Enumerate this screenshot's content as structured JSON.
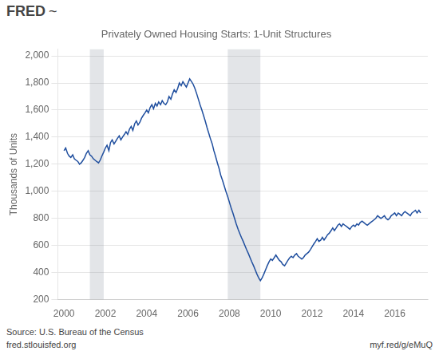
{
  "chart_data": {
    "type": "line",
    "title": "Privately Owned Housing Starts: 1-Unit Structures",
    "ylabel": "Thousands of Units",
    "annotations": [
      "FRED",
      "~",
      "Source: U.S. Bureau of the Census",
      "fred.stlouisfed.org",
      "myf.red/g/eMuQ"
    ],
    "color": "#1f4e9e",
    "grid": "y",
    "xlim": [
      1999.7,
      2017.6
    ],
    "xticks": [
      2000,
      2002,
      2004,
      2006,
      2008,
      2010,
      2012,
      2014,
      2016
    ],
    "ylim": [
      200,
      2050
    ],
    "yticks": [
      200,
      400,
      600,
      800,
      {
        "value": 1000,
        "label": "1,000"
      },
      {
        "value": 1200,
        "label": "1,200"
      },
      {
        "value": 1400,
        "label": "1,400"
      },
      {
        "value": 1600,
        "label": "1,600"
      },
      {
        "value": 1800,
        "label": "1,800"
      },
      {
        "value": 2000,
        "label": "2,000"
      }
    ],
    "shaded_ranges": [
      [
        2001.25,
        2001.92
      ],
      [
        2007.92,
        2009.5
      ]
    ],
    "x": [
      2000.0,
      2000.08,
      2000.17,
      2000.25,
      2000.33,
      2000.42,
      2000.5,
      2000.58,
      2000.67,
      2000.75,
      2000.83,
      2000.92,
      2001.0,
      2001.08,
      2001.17,
      2001.25,
      2001.33,
      2001.42,
      2001.5,
      2001.58,
      2001.67,
      2001.75,
      2001.83,
      2001.92,
      2002.0,
      2002.08,
      2002.17,
      2002.25,
      2002.33,
      2002.42,
      2002.5,
      2002.58,
      2002.67,
      2002.75,
      2002.83,
      2002.92,
      2003.0,
      2003.08,
      2003.17,
      2003.25,
      2003.33,
      2003.42,
      2003.5,
      2003.58,
      2003.67,
      2003.75,
      2003.83,
      2003.92,
      2004.0,
      2004.08,
      2004.17,
      2004.25,
      2004.33,
      2004.42,
      2004.5,
      2004.58,
      2004.67,
      2004.75,
      2004.83,
      2004.92,
      2005.0,
      2005.08,
      2005.17,
      2005.25,
      2005.33,
      2005.42,
      2005.5,
      2005.58,
      2005.67,
      2005.75,
      2005.83,
      2005.92,
      2006.0,
      2006.08,
      2006.17,
      2006.25,
      2006.33,
      2006.42,
      2006.5,
      2006.58,
      2006.67,
      2006.75,
      2006.83,
      2006.92,
      2007.0,
      2007.08,
      2007.17,
      2007.25,
      2007.33,
      2007.42,
      2007.5,
      2007.58,
      2007.67,
      2007.75,
      2007.83,
      2007.92,
      2008.0,
      2008.08,
      2008.17,
      2008.25,
      2008.33,
      2008.42,
      2008.5,
      2008.58,
      2008.67,
      2008.75,
      2008.83,
      2008.92,
      2009.0,
      2009.08,
      2009.17,
      2009.25,
      2009.33,
      2009.42,
      2009.5,
      2009.58,
      2009.67,
      2009.75,
      2009.83,
      2009.92,
      2010.0,
      2010.08,
      2010.17,
      2010.25,
      2010.33,
      2010.42,
      2010.5,
      2010.58,
      2010.67,
      2010.75,
      2010.83,
      2010.92,
      2011.0,
      2011.08,
      2011.17,
      2011.25,
      2011.33,
      2011.42,
      2011.5,
      2011.58,
      2011.67,
      2011.75,
      2011.83,
      2011.92,
      2012.0,
      2012.08,
      2012.17,
      2012.25,
      2012.33,
      2012.42,
      2012.5,
      2012.58,
      2012.67,
      2012.75,
      2012.83,
      2012.92,
      2013.0,
      2013.08,
      2013.17,
      2013.25,
      2013.33,
      2013.42,
      2013.5,
      2013.58,
      2013.67,
      2013.75,
      2013.83,
      2013.92,
      2014.0,
      2014.08,
      2014.17,
      2014.25,
      2014.33,
      2014.42,
      2014.5,
      2014.58,
      2014.67,
      2014.75,
      2014.83,
      2014.92,
      2015.0,
      2015.08,
      2015.17,
      2015.25,
      2015.33,
      2015.42,
      2015.5,
      2015.58,
      2015.67,
      2015.75,
      2015.83,
      2015.92,
      2016.0,
      2016.08,
      2016.17,
      2016.25,
      2016.33,
      2016.42,
      2016.5,
      2016.58,
      2016.67,
      2016.75,
      2016.83,
      2016.92,
      2017.0,
      2017.08,
      2017.17,
      2017.25
    ],
    "values": [
      1300,
      1320,
      1280,
      1260,
      1250,
      1270,
      1240,
      1230,
      1220,
      1200,
      1210,
      1230,
      1250,
      1280,
      1300,
      1270,
      1260,
      1240,
      1230,
      1220,
      1210,
      1230,
      1260,
      1290,
      1320,
      1340,
      1300,
      1360,
      1380,
      1350,
      1370,
      1390,
      1410,
      1380,
      1400,
      1420,
      1440,
      1420,
      1460,
      1480,
      1450,
      1500,
      1520,
      1490,
      1510,
      1540,
      1560,
      1580,
      1600,
      1580,
      1620,
      1640,
      1610,
      1650,
      1630,
      1660,
      1640,
      1670,
      1650,
      1640,
      1660,
      1700,
      1680,
      1720,
      1750,
      1730,
      1760,
      1800,
      1780,
      1810,
      1790,
      1770,
      1800,
      1830,
      1810,
      1790,
      1760,
      1720,
      1680,
      1640,
      1600,
      1560,
      1520,
      1470,
      1430,
      1390,
      1350,
      1300,
      1260,
      1210,
      1170,
      1120,
      1080,
      1040,
      1000,
      960,
      920,
      880,
      840,
      800,
      760,
      720,
      690,
      660,
      630,
      600,
      570,
      540,
      510,
      480,
      450,
      420,
      390,
      360,
      340,
      360,
      390,
      420,
      450,
      480,
      500,
      490,
      510,
      530,
      510,
      490,
      480,
      460,
      450,
      470,
      490,
      510,
      520,
      510,
      530,
      540,
      520,
      510,
      500,
      510,
      530,
      540,
      550,
      570,
      590,
      610,
      630,
      650,
      630,
      640,
      660,
      640,
      660,
      680,
      690,
      710,
      730,
      710,
      730,
      750,
      760,
      740,
      760,
      750,
      740,
      730,
      720,
      740,
      750,
      740,
      760,
      750,
      770,
      780,
      770,
      760,
      750,
      760,
      770,
      780,
      790,
      800,
      820,
      810,
      800,
      810,
      820,
      800,
      790,
      800,
      820,
      830,
      840,
      820,
      840,
      830,
      820,
      840,
      850,
      840,
      830,
      820,
      840,
      850,
      860,
      840,
      860,
      840
    ]
  }
}
